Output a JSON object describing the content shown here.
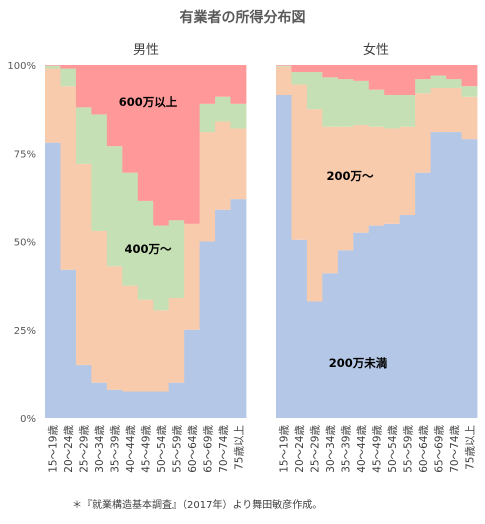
{
  "chart_data": {
    "type": "bar",
    "stacked": true,
    "normalized": true,
    "title": "有業者の所得分布図",
    "caption": "＊『就業構造基本調査』（2017年）より舞田敏彦作成。",
    "y_ticks": [
      "0%",
      "25%",
      "50%",
      "75%",
      "100%"
    ],
    "ylim": [
      0,
      100
    ],
    "grid": false,
    "categories": [
      "15～19歳",
      "20～24歳",
      "25～29歳",
      "30～34歳",
      "35～39歳",
      "40～44歳",
      "45～49歳",
      "50～54歳",
      "55～59歳",
      "60～64歳",
      "65～69歳",
      "70～74歳",
      "75歳以上"
    ],
    "band_labels": [
      {
        "panel": 0,
        "band": 3,
        "text": "600万以上"
      },
      {
        "panel": 0,
        "band": 2,
        "text": "400万～"
      },
      {
        "panel": 1,
        "band": 1,
        "text": "200万～"
      },
      {
        "panel": 1,
        "band": 0,
        "text": "200万未満"
      }
    ],
    "colors": [
      "#b4c7e7",
      "#f8cbad",
      "#c5e0b4",
      "#ff9999"
    ],
    "panels": [
      {
        "name": "男性",
        "series": [
          {
            "values": [
              78,
              42,
              15,
              10,
              8,
              7.5,
              7.5,
              7.5,
              10,
              25,
              50,
              59,
              62
            ]
          },
          {
            "values": [
              21,
              52,
              57,
              43,
              35,
              30,
              26,
              23,
              24,
              30,
              31,
              25,
              20
            ]
          },
          {
            "values": [
              0.8,
              5,
              16,
              33,
              34,
              32,
              28,
              24,
              22,
              0,
              8,
              7,
              7
            ]
          },
          {
            "values": [
              0.2,
              1,
              12,
              14,
              23,
              30.5,
              38.5,
              45.5,
              44,
              45,
              11,
              9,
              11
            ]
          }
        ]
      },
      {
        "name": "女性",
        "series": [
          {
            "values": [
              91.5,
              50.5,
              33,
              41,
              47.5,
              52.5,
              54.5,
              55,
              57.5,
              69.5,
              81,
              81,
              79
            ]
          },
          {
            "values": [
              8,
              44,
              54.5,
              41.5,
              35,
              30.5,
              28,
              27,
              25,
              22.5,
              12.5,
              12.5,
              12
            ]
          },
          {
            "values": [
              0.3,
              3.5,
              10.5,
              14,
              13.5,
              12.5,
              10.5,
              9.5,
              9,
              4,
              3.5,
              2.5,
              3
            ]
          },
          {
            "values": [
              0.2,
              2,
              2,
              3.5,
              4,
              4.5,
              7,
              8.5,
              8.5,
              4,
              3,
              4,
              6
            ]
          }
        ]
      }
    ]
  }
}
